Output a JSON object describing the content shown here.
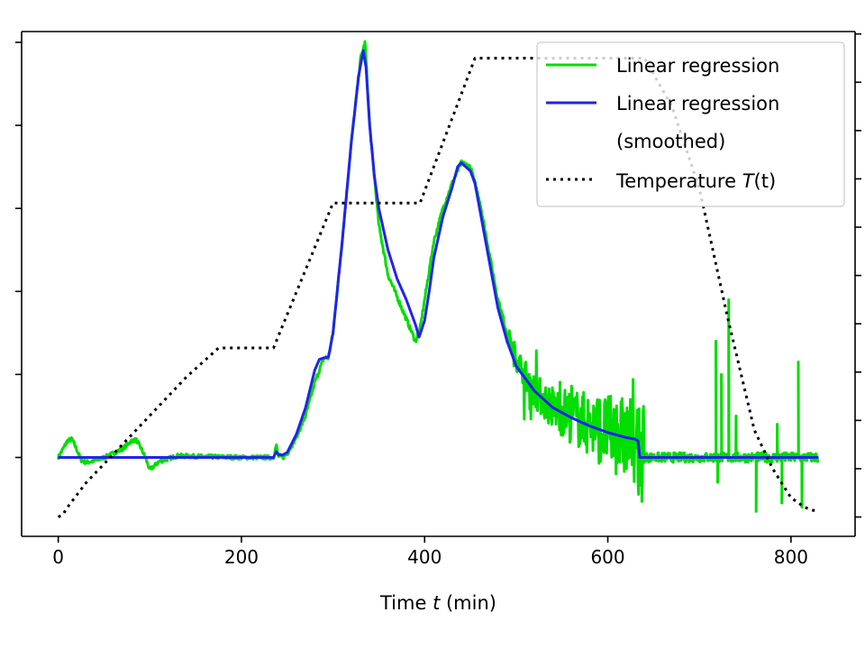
{
  "chart_data": {
    "type": "line",
    "title": "",
    "xlabel": "Time t (min)",
    "xlabel_parts": {
      "before": "Time ",
      "var": "t",
      "after": " (min)"
    },
    "ylabel": "",
    "xlim": [
      -40,
      870
    ],
    "ylim": [
      -0.095,
      0.513
    ],
    "y2lim": [
      -0.04,
      1.005
    ],
    "x_ticks": [
      0,
      200,
      400,
      600,
      800
    ],
    "x_tick_labels": [
      "0",
      "200",
      "400",
      "600",
      "800"
    ],
    "y_ticks": [
      0.0,
      0.1,
      0.2,
      0.3,
      0.4,
      0.5
    ],
    "y2_ticks": [
      0.0,
      0.1,
      0.2,
      0.3,
      0.4,
      0.5,
      0.6,
      0.7,
      0.8,
      0.9,
      1.0
    ],
    "legend_position": "top-right",
    "series": [
      {
        "name": "Linear regression",
        "color": "#00dd00",
        "style": "solid",
        "axis": "left",
        "noise": true,
        "x": [
          0,
          5,
          10,
          15,
          20,
          25,
          30,
          40,
          50,
          60,
          70,
          80,
          85,
          90,
          95,
          100,
          110,
          130,
          160,
          200,
          235,
          238,
          240,
          245,
          250,
          260,
          270,
          280,
          290,
          295,
          300,
          310,
          320,
          330,
          335,
          340,
          350,
          360,
          375,
          390,
          395,
          400,
          410,
          420,
          430,
          440,
          450,
          460,
          470,
          480,
          490,
          500,
          520,
          540,
          560,
          580,
          600,
          630,
          635,
          650,
          700,
          740,
          770,
          800,
          830
        ],
        "y": [
          0.0,
          0.01,
          0.02,
          0.022,
          0.01,
          -0.003,
          -0.006,
          -0.004,
          0.0,
          0.005,
          0.01,
          0.02,
          0.021,
          0.012,
          0.0,
          -0.015,
          -0.005,
          0.002,
          0.001,
          0.0,
          0.0,
          0.015,
          0.002,
          0.0,
          0.005,
          0.025,
          0.05,
          0.09,
          0.12,
          0.12,
          0.15,
          0.26,
          0.38,
          0.48,
          0.5,
          0.4,
          0.28,
          0.22,
          0.18,
          0.14,
          0.155,
          0.19,
          0.26,
          0.3,
          0.33,
          0.355,
          0.35,
          0.31,
          0.25,
          0.19,
          0.15,
          0.12,
          0.08,
          0.06,
          0.05,
          0.04,
          0.03,
          0.02,
          0.0,
          0.0,
          0.0,
          0.0,
          0.0,
          0.0,
          0.0
        ],
        "spikes": [
          {
            "x": 732,
            "y": 0.19
          },
          {
            "x": 718,
            "y": 0.14
          },
          {
            "x": 724,
            "y": 0.1
          },
          {
            "x": 785,
            "y": 0.04
          },
          {
            "x": 808,
            "y": 0.115
          },
          {
            "x": 790,
            "y": -0.055
          },
          {
            "x": 762,
            "y": -0.065
          },
          {
            "x": 812,
            "y": -0.06
          },
          {
            "x": 720,
            "y": -0.03
          },
          {
            "x": 740,
            "y": 0.05
          }
        ]
      },
      {
        "name": "Linear regression (smoothed)",
        "color": "#2222ee",
        "style": "solid",
        "axis": "left",
        "x": [
          0,
          30,
          60,
          100,
          150,
          200,
          235,
          238,
          241,
          245,
          250,
          260,
          270,
          280,
          285,
          290,
          295,
          300,
          310,
          320,
          328,
          333,
          336,
          340,
          345,
          350,
          360,
          370,
          380,
          390,
          394,
          397,
          400,
          405,
          410,
          420,
          430,
          436,
          440,
          445,
          450,
          455,
          460,
          470,
          480,
          490,
          500,
          520,
          540,
          560,
          580,
          600,
          620,
          630,
          633,
          635,
          700,
          750,
          800,
          830
        ],
        "y": [
          0.0,
          0.0,
          0.0,
          0.0,
          0.0,
          0.0,
          0.0,
          0.007,
          0.003,
          0.003,
          0.006,
          0.028,
          0.06,
          0.105,
          0.118,
          0.12,
          0.121,
          0.15,
          0.26,
          0.38,
          0.46,
          0.49,
          0.47,
          0.4,
          0.34,
          0.3,
          0.25,
          0.215,
          0.19,
          0.16,
          0.145,
          0.155,
          0.165,
          0.2,
          0.24,
          0.29,
          0.325,
          0.35,
          0.355,
          0.35,
          0.345,
          0.33,
          0.3,
          0.24,
          0.18,
          0.14,
          0.11,
          0.08,
          0.06,
          0.048,
          0.038,
          0.03,
          0.024,
          0.022,
          0.02,
          0.0,
          0.0,
          0.0,
          0.0,
          0.0
        ]
      },
      {
        "name": "Temperature T(t)",
        "color": "#000000",
        "style": "dotted",
        "axis": "right",
        "x": [
          0,
          5,
          10,
          30,
          60,
          100,
          140,
          175,
          235,
          300,
          335,
          395,
          455,
          640,
          670,
          700,
          730,
          760,
          780,
          800,
          815,
          830
        ],
        "y": [
          0.0,
          0.005,
          0.02,
          0.07,
          0.13,
          0.21,
          0.29,
          0.35,
          0.35,
          0.65,
          0.65,
          0.65,
          0.95,
          0.95,
          0.85,
          0.68,
          0.42,
          0.18,
          0.1,
          0.04,
          0.02,
          0.01
        ]
      }
    ],
    "legend": [
      {
        "label": "Linear regression",
        "color": "#00dd00",
        "style": "solid"
      },
      {
        "label": "Linear regression",
        "label2": "(smoothed)",
        "color": "#2222ee",
        "style": "solid"
      },
      {
        "label": "Temperature ",
        "label_var": "T",
        "label_after": "(t)",
        "color": "#000000",
        "style": "dotted"
      }
    ]
  }
}
